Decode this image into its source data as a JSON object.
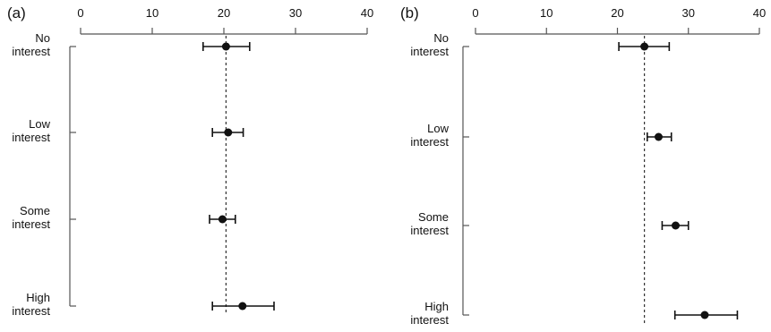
{
  "chart_data": [
    {
      "type": "scatter",
      "panel_label": "(a)",
      "x_ticks": [
        0,
        10,
        20,
        30,
        40
      ],
      "xlim": [
        0,
        40
      ],
      "x_axis_position": "top",
      "categories": [
        [
          "No",
          "interest"
        ],
        [
          "Low",
          "interest"
        ],
        [
          "Some",
          "interest"
        ],
        [
          "High",
          "interest"
        ]
      ],
      "points": [
        {
          "estimate": 20.3,
          "lower": 17.1,
          "upper": 23.6
        },
        {
          "estimate": 20.6,
          "lower": 18.4,
          "upper": 22.7
        },
        {
          "estimate": 19.8,
          "lower": 18.0,
          "upper": 21.6
        },
        {
          "estimate": 22.6,
          "lower": 18.4,
          "upper": 27.0
        }
      ],
      "reference_line": 20.3,
      "grid": false
    },
    {
      "type": "scatter",
      "panel_label": "(b)",
      "x_ticks": [
        0,
        10,
        20,
        30,
        40
      ],
      "xlim": [
        0,
        40
      ],
      "x_axis_position": "top",
      "categories": [
        [
          "No",
          "interest"
        ],
        [
          "Low",
          "interest"
        ],
        [
          "Some",
          "interest"
        ],
        [
          "High",
          "interest"
        ]
      ],
      "points": [
        {
          "estimate": 23.8,
          "lower": 20.2,
          "upper": 27.3
        },
        {
          "estimate": 25.8,
          "lower": 24.2,
          "upper": 27.6
        },
        {
          "estimate": 28.2,
          "lower": 26.3,
          "upper": 30.0
        },
        {
          "estimate": 32.3,
          "lower": 28.1,
          "upper": 36.9
        }
      ],
      "reference_line": 23.8,
      "grid": false
    }
  ]
}
